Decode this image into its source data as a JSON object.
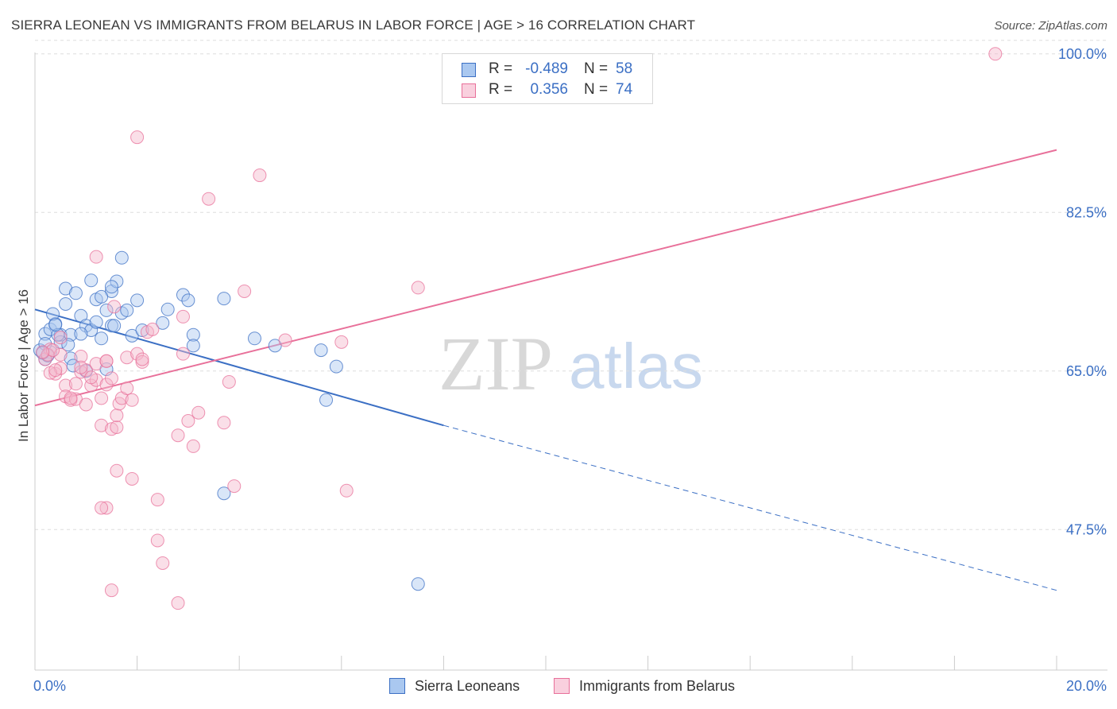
{
  "title": "SIERRA LEONEAN VS IMMIGRANTS FROM BELARUS IN LABOR FORCE | AGE > 16 CORRELATION CHART",
  "source": "Source: ZipAtlas.com",
  "watermark": {
    "zip": "ZIP",
    "atlas": "atlas"
  },
  "colors": {
    "blue": "#3b6fc4",
    "blue_fill": "#aac8f0",
    "pink": "#e8709a",
    "pink_fill": "#f4b8cc",
    "grid": "#dddddd"
  },
  "stats": [
    {
      "r_label": "R =",
      "r_value": "-0.489",
      "n_label": "N =",
      "n_value": "58"
    },
    {
      "r_label": "R =",
      "r_value": "0.356",
      "n_label": "N =",
      "n_value": "74"
    }
  ],
  "legend": [
    {
      "label": "Sierra Leoneans"
    },
    {
      "label": "Immigrants from Belarus"
    }
  ],
  "chart_data": {
    "type": "scatter",
    "xlabel": "",
    "ylabel": "In Labor Force | Age > 16",
    "xlim": [
      0,
      20
    ],
    "ylim": [
      32,
      102
    ],
    "x_tick_labels": [
      "0.0%",
      "20.0%"
    ],
    "y_ticks": [
      47.5,
      65.0,
      82.5,
      100.0
    ],
    "y_tick_labels": [
      "47.5%",
      "65.0%",
      "82.5%",
      "100.0%"
    ],
    "series": [
      {
        "name": "Sierra Leoneans",
        "points": [
          [
            0.2,
            69.1
          ],
          [
            0.3,
            69.6
          ],
          [
            0.4,
            70.2
          ],
          [
            0.5,
            69.0
          ],
          [
            0.5,
            68.2
          ],
          [
            0.3,
            67.1
          ],
          [
            0.2,
            66.3
          ],
          [
            0.1,
            67.3
          ],
          [
            0.35,
            71.3
          ],
          [
            0.6,
            72.4
          ],
          [
            0.6,
            74.1
          ],
          [
            0.7,
            69.0
          ],
          [
            0.8,
            73.6
          ],
          [
            0.9,
            71.1
          ],
          [
            1.0,
            70.0
          ],
          [
            1.1,
            69.5
          ],
          [
            1.1,
            75.0
          ],
          [
            1.2,
            72.9
          ],
          [
            1.3,
            68.6
          ],
          [
            1.4,
            71.7
          ],
          [
            1.5,
            73.8
          ],
          [
            1.5,
            70.0
          ],
          [
            1.6,
            74.9
          ],
          [
            1.7,
            71.4
          ],
          [
            1.7,
            77.5
          ],
          [
            1.8,
            71.7
          ],
          [
            1.9,
            68.9
          ],
          [
            2.0,
            72.8
          ],
          [
            2.1,
            69.5
          ],
          [
            2.5,
            70.3
          ],
          [
            2.6,
            71.8
          ],
          [
            2.9,
            73.4
          ],
          [
            3.0,
            72.8
          ],
          [
            3.1,
            69.0
          ],
          [
            3.1,
            67.8
          ],
          [
            3.7,
            73.0
          ],
          [
            4.3,
            68.6
          ],
          [
            4.7,
            67.8
          ],
          [
            5.6,
            67.3
          ],
          [
            5.9,
            65.5
          ],
          [
            5.7,
            61.8
          ],
          [
            0.7,
            66.4
          ],
          [
            1.0,
            65.0
          ],
          [
            1.4,
            65.2
          ],
          [
            1.3,
            73.2
          ],
          [
            1.2,
            70.4
          ],
          [
            0.45,
            69.0
          ],
          [
            0.9,
            69.1
          ],
          [
            0.2,
            68.0
          ],
          [
            0.25,
            66.7
          ],
          [
            0.4,
            70.1
          ],
          [
            1.55,
            70.0
          ],
          [
            0.65,
            67.9
          ],
          [
            0.75,
            65.6
          ],
          [
            3.7,
            51.5
          ],
          [
            7.5,
            41.5
          ],
          [
            1.5,
            74.3
          ],
          [
            0.15,
            67.0
          ]
        ]
      },
      {
        "name": "Immigrants from Belarus",
        "points": [
          [
            0.2,
            66.3
          ],
          [
            0.3,
            67.4
          ],
          [
            0.4,
            64.7
          ],
          [
            0.5,
            65.3
          ],
          [
            0.5,
            66.8
          ],
          [
            0.6,
            63.4
          ],
          [
            0.6,
            62.2
          ],
          [
            0.7,
            61.8
          ],
          [
            0.8,
            61.9
          ],
          [
            0.8,
            63.6
          ],
          [
            0.9,
            64.9
          ],
          [
            0.9,
            66.6
          ],
          [
            1.0,
            65.1
          ],
          [
            1.0,
            61.3
          ],
          [
            1.1,
            63.4
          ],
          [
            1.2,
            65.8
          ],
          [
            1.2,
            64.0
          ],
          [
            1.3,
            62.0
          ],
          [
            1.3,
            59.0
          ],
          [
            1.4,
            66.1
          ],
          [
            1.4,
            63.5
          ],
          [
            1.5,
            64.2
          ],
          [
            1.5,
            58.6
          ],
          [
            1.6,
            58.8
          ],
          [
            1.6,
            60.1
          ],
          [
            1.65,
            61.4
          ],
          [
            1.7,
            62.0
          ],
          [
            1.8,
            63.1
          ],
          [
            1.8,
            66.5
          ],
          [
            1.9,
            61.8
          ],
          [
            2.0,
            66.9
          ],
          [
            2.1,
            66.0
          ],
          [
            2.2,
            69.3
          ],
          [
            2.3,
            69.6
          ],
          [
            2.4,
            50.8
          ],
          [
            2.5,
            43.8
          ],
          [
            2.8,
            57.9
          ],
          [
            2.9,
            71.0
          ],
          [
            3.0,
            59.5
          ],
          [
            3.2,
            60.4
          ],
          [
            3.4,
            84.0
          ],
          [
            3.7,
            59.3
          ],
          [
            3.8,
            63.8
          ],
          [
            3.9,
            52.3
          ],
          [
            4.1,
            73.8
          ],
          [
            4.4,
            86.6
          ],
          [
            4.9,
            68.4
          ],
          [
            6.0,
            68.2
          ],
          [
            6.1,
            51.8
          ],
          [
            7.5,
            74.2
          ],
          [
            1.9,
            53.1
          ],
          [
            1.6,
            54.0
          ],
          [
            2.4,
            46.3
          ],
          [
            1.4,
            49.9
          ],
          [
            1.3,
            49.9
          ],
          [
            2.8,
            39.4
          ],
          [
            1.5,
            40.8
          ],
          [
            2.0,
            90.8
          ],
          [
            1.2,
            77.6
          ],
          [
            1.4,
            66.1
          ],
          [
            0.3,
            64.8
          ],
          [
            0.4,
            65.1
          ],
          [
            0.7,
            62.0
          ],
          [
            1.1,
            64.3
          ],
          [
            0.9,
            65.4
          ],
          [
            2.9,
            66.9
          ],
          [
            3.1,
            56.7
          ],
          [
            18.8,
            100.0
          ],
          [
            0.25,
            66.8
          ],
          [
            0.35,
            67.3
          ],
          [
            0.5,
            68.7
          ],
          [
            1.55,
            72.1
          ],
          [
            0.15,
            67.1
          ],
          [
            2.1,
            66.3
          ]
        ]
      }
    ],
    "trendlines": [
      {
        "series": "Sierra Leoneans",
        "solid": [
          [
            0.0,
            71.8
          ],
          [
            8.0,
            59.0
          ]
        ],
        "dashed": [
          [
            8.0,
            59.0
          ],
          [
            20.0,
            40.8
          ]
        ]
      },
      {
        "series": "Immigrants from Belarus",
        "solid": [
          [
            0.0,
            61.2
          ],
          [
            20.0,
            89.4
          ]
        ]
      }
    ]
  }
}
